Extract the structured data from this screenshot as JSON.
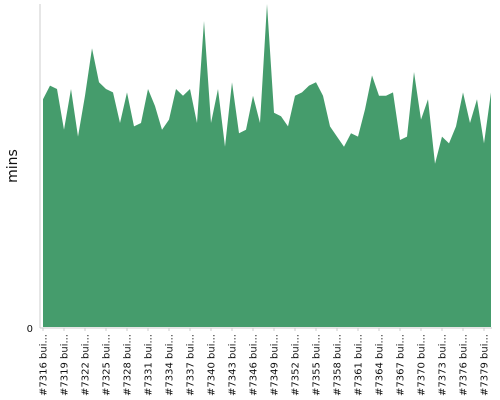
{
  "chart_data": {
    "type": "area",
    "title": "",
    "xlabel": "",
    "ylabel": "mins",
    "ylim": [
      0,
      9.5
    ],
    "y_tick_labels": [
      "0"
    ],
    "grid": false,
    "legend": "none",
    "x_tick_labels": [
      "#7316 bui...",
      "#7319 bui...",
      "#7322 bui...",
      "#7325 bui...",
      "#7328 bui...",
      "#7331 bui...",
      "#7334 bui...",
      "#7337 bui...",
      "#7340 bui...",
      "#7343 bui...",
      "#7346 bui...",
      "#7349 bui...",
      "#7352 bui...",
      "#7355 bui...",
      "#7358 bui...",
      "#7361 bui...",
      "#7364 bui...",
      "#7367 bui...",
      "#7370 bui...",
      "#7373 bui...",
      "#7376 bui...",
      "#7379 bui..."
    ],
    "series": [
      {
        "color": "#459c6c",
        "values": [
          6.7,
          7.1,
          7.0,
          5.8,
          7.0,
          5.6,
          6.8,
          8.2,
          7.2,
          7.0,
          6.9,
          6.0,
          6.9,
          5.9,
          6.0,
          7.0,
          6.5,
          5.8,
          6.1,
          7.0,
          6.8,
          7.0,
          6.0,
          9.0,
          6.0,
          7.0,
          5.3,
          7.2,
          5.7,
          5.8,
          6.8,
          6.0,
          9.5,
          6.3,
          6.2,
          5.9,
          6.8,
          6.9,
          7.1,
          7.2,
          6.8,
          5.9,
          5.6,
          5.3,
          5.7,
          5.6,
          6.4,
          7.4,
          6.8,
          6.8,
          6.9,
          5.5,
          5.6,
          7.5,
          6.1,
          6.7,
          4.8,
          5.6,
          5.4,
          5.9,
          6.9,
          6.0,
          6.7,
          5.4,
          6.9
        ]
      }
    ]
  }
}
